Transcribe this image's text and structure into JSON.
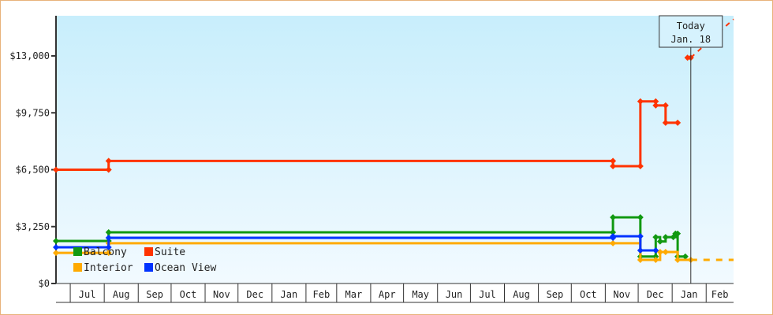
{
  "chart_data": {
    "type": "line",
    "step": true,
    "xlim": [
      "2022-06-18",
      "2024-02-26"
    ],
    "ylim": [
      0,
      14000
    ],
    "yticks": [
      0,
      3250,
      6500,
      9750,
      13000
    ],
    "ytick_labels": [
      "$0",
      "$3,250",
      "$6,500",
      "$9,750",
      "$13,000"
    ],
    "month_labels": [
      "",
      "Jul",
      "Aug",
      "Sep",
      "Oct",
      "Nov",
      "Dec",
      "Jan",
      "Feb",
      "Mar",
      "Apr",
      "May",
      "Jun",
      "Jul",
      "Aug",
      "Sep",
      "Oct",
      "Nov",
      "Dec",
      "Jan",
      "Feb"
    ],
    "month_starts": [
      "2022-06-18",
      "2022-07-01",
      "2022-08-01",
      "2022-09-01",
      "2022-10-01",
      "2022-11-01",
      "2022-12-01",
      "2023-01-01",
      "2023-02-01",
      "2023-03-01",
      "2023-04-01",
      "2023-05-01",
      "2023-06-01",
      "2023-07-01",
      "2023-08-01",
      "2023-09-01",
      "2023-10-01",
      "2023-11-01",
      "2023-12-01",
      "2024-01-01",
      "2024-02-01"
    ],
    "legend_placement": "bottom-left",
    "today": {
      "date": "2024-01-18",
      "label_line1": "Today",
      "label_line2": "Jan. 18"
    },
    "series": [
      {
        "name": "Balcony",
        "color": "#119911",
        "points": [
          [
            "2022-06-18",
            2430
          ],
          [
            "2022-08-05",
            2430
          ],
          [
            "2022-08-05",
            2925
          ],
          [
            "2023-11-08",
            2925
          ],
          [
            "2023-11-08",
            3780
          ],
          [
            "2023-12-03",
            3780
          ],
          [
            "2023-12-03",
            1540
          ],
          [
            "2023-12-17",
            1540
          ],
          [
            "2023-12-17",
            2650
          ],
          [
            "2023-12-21",
            2400
          ],
          [
            "2023-12-26",
            2650
          ],
          [
            "2024-01-02",
            2650
          ],
          [
            "2024-01-04",
            2850
          ],
          [
            "2024-01-06",
            2850
          ],
          [
            "2024-01-06",
            1540
          ],
          [
            "2024-01-13",
            1540
          ]
        ]
      },
      {
        "name": "Suite",
        "color": "#ff3300",
        "points": [
          [
            "2022-06-18",
            6500
          ],
          [
            "2022-08-05",
            6500
          ],
          [
            "2022-08-05",
            7000
          ],
          [
            "2023-11-08",
            7000
          ],
          [
            "2023-11-08",
            6700
          ],
          [
            "2023-12-03",
            6700
          ],
          [
            "2023-12-03",
            10400
          ],
          [
            "2023-12-17",
            10400
          ],
          [
            "2023-12-17",
            10170
          ],
          [
            "2023-12-26",
            10170
          ],
          [
            "2023-12-26",
            9180
          ],
          [
            "2024-01-06",
            9180
          ]
        ]
      },
      {
        "name": "Interior",
        "color": "#ffaa00",
        "points": [
          [
            "2022-06-18",
            1750
          ],
          [
            "2022-08-05",
            1750
          ],
          [
            "2022-08-05",
            2300
          ],
          [
            "2023-11-08",
            2300
          ],
          [
            "2023-12-03",
            1350
          ],
          [
            "2023-12-17",
            1350
          ],
          [
            "2023-12-21",
            1800
          ],
          [
            "2023-12-26",
            1800
          ],
          [
            "2024-01-06",
            1350
          ],
          [
            "2024-01-18",
            1350
          ]
        ],
        "projection": [
          [
            "2024-01-18",
            1350
          ],
          [
            "2024-02-26",
            1350
          ]
        ]
      },
      {
        "name": "Ocean View",
        "color": "#0033ff",
        "points": [
          [
            "2022-06-18",
            2070
          ],
          [
            "2022-08-05",
            2070
          ],
          [
            "2022-08-05",
            2610
          ],
          [
            "2023-11-08",
            2610
          ],
          [
            "2023-11-08",
            2700
          ],
          [
            "2023-12-03",
            2700
          ],
          [
            "2023-12-03",
            1890
          ],
          [
            "2023-12-17",
            1890
          ]
        ]
      }
    ],
    "suite_today": {
      "points": [
        [
          "2024-01-15",
          12900
        ],
        [
          "2024-01-18",
          12900
        ]
      ],
      "projection": [
        [
          "2024-01-18",
          12900
        ],
        [
          "2024-02-26",
          15100
        ]
      ]
    }
  }
}
